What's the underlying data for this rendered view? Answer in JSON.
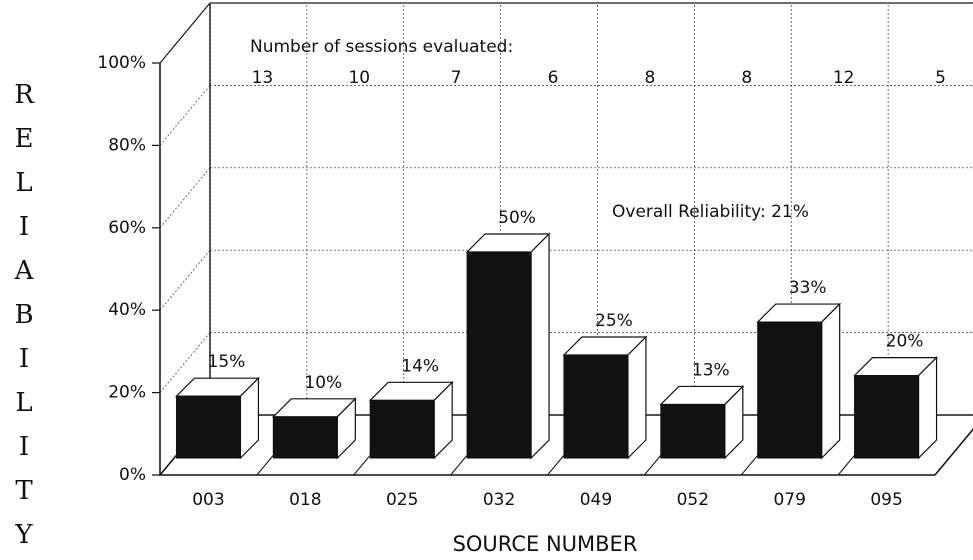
{
  "chart_data": {
    "type": "bar3d",
    "annotations": [
      "Number of sessions evaluated:",
      "Overall Reliability: 21%"
    ],
    "sessions": [
      "13",
      "10",
      "7",
      "6",
      "8",
      "8",
      "12",
      "5"
    ],
    "categories": [
      "003",
      "018",
      "025",
      "032",
      "049",
      "052",
      "079",
      "095"
    ],
    "values": [
      15,
      10,
      14,
      50,
      25,
      13,
      33,
      20
    ],
    "value_labels": [
      "15%",
      "10%",
      "14%",
      "50%",
      "25%",
      "13%",
      "33%",
      "20%"
    ],
    "color": "#111111",
    "x_label": "SOURCE NUMBER",
    "y_label": "RELIABILITY",
    "ylim": [
      0,
      100
    ],
    "yticks": [
      {
        "value": 0,
        "label": "0%"
      },
      {
        "value": 20,
        "label": "20%"
      },
      {
        "value": 40,
        "label": "40%"
      },
      {
        "value": 60,
        "label": "60%"
      },
      {
        "value": 80,
        "label": "80%"
      },
      {
        "value": 100,
        "label": "100%"
      }
    ],
    "grid": true
  }
}
